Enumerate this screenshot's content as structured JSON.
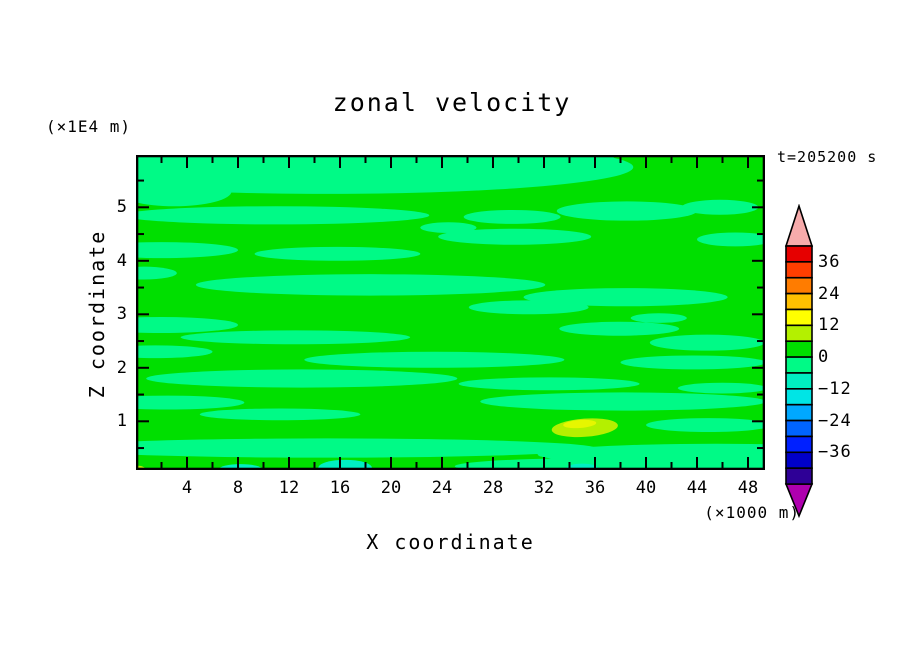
{
  "title": "zonal velocity",
  "timestamp": "t=205200 s",
  "axes": {
    "x": {
      "label": "X coordinate",
      "unit": "(×1000 m)",
      "major_ticks": [
        4,
        8,
        12,
        16,
        20,
        24,
        28,
        32,
        36,
        40,
        44,
        48
      ],
      "minor_tick_step": 2,
      "range": [
        0,
        49.4
      ]
    },
    "y": {
      "label": "Z coordinate",
      "unit": "(×1E4 m)",
      "major_ticks": [
        1,
        2,
        3,
        4,
        5
      ],
      "minor_tick_step": 0.5,
      "range": [
        0.08,
        5.98
      ]
    }
  },
  "colorbar": {
    "tick_labels": [
      "36",
      "24",
      "12",
      "0",
      "−12",
      "−24",
      "−36"
    ],
    "boxes": [
      {
        "value_range": [
          36,
          42
        ],
        "color": "#E60000"
      },
      {
        "value_range": [
          30,
          36
        ],
        "color": "#FF3E00"
      },
      {
        "value_range": [
          24,
          30
        ],
        "color": "#FF7C00"
      },
      {
        "value_range": [
          18,
          24
        ],
        "color": "#FFC000"
      },
      {
        "value_range": [
          12,
          18
        ],
        "color": "#FFFF00"
      },
      {
        "value_range": [
          6,
          12
        ],
        "color": "#B4F000"
      },
      {
        "value_range": [
          0,
          6
        ],
        "color": "#00DF00"
      },
      {
        "value_range": [
          -6,
          0
        ],
        "color": "#00FA86"
      },
      {
        "value_range": [
          -12,
          -6
        ],
        "color": "#00EFC2"
      },
      {
        "value_range": [
          -18,
          -12
        ],
        "color": "#00E5E5"
      },
      {
        "value_range": [
          -24,
          -18
        ],
        "color": "#00A8FF"
      },
      {
        "value_range": [
          -30,
          -24
        ],
        "color": "#0064FF"
      },
      {
        "value_range": [
          -36,
          -30
        ],
        "color": "#0020FF"
      },
      {
        "value_range": [
          -42,
          -36
        ],
        "color": "#0000C8"
      },
      {
        "value_range": [
          -48,
          -42
        ],
        "color": "#2E0096"
      }
    ],
    "over_arrow_color": "#F7ABAB",
    "under_arrow_color": "#AE00AE"
  },
  "chart_data": {
    "type": "heatmap",
    "title": "zonal velocity",
    "xlabel": "X coordinate (×1000 m)",
    "ylabel": "Z coordinate (×1E4 m)",
    "time_stamp": "t=205200 s",
    "x_range": [
      0,
      49.4
    ],
    "z_range": [
      0.08,
      5.98
    ],
    "contour_interval": 6,
    "value_labels_shown": [
      36,
      24,
      12,
      0,
      -12,
      -24,
      -36
    ],
    "field_summary": "Field is dominated by values in (0,6) shown green, with horizontally elongated streaks of (-6,0) shown spring-green; a small local maximum of 12-18 (yellow core in chartreuse ring) near x=35, z=0.9; small near-surface aquamarine minima (-12..-6) near x=8, 16 and 35; tiny chartreuse near-surface maxima (6..12) near x=0, 24.5 and 48.5.",
    "background_band": {
      "value_range": [
        0,
        6
      ],
      "color": "#00DF00"
    },
    "mint_band": {
      "value_range": [
        -6,
        0
      ],
      "color": "#00FA86",
      "ellipses": [
        [
          15,
          5.75,
          24,
          0.5
        ],
        [
          3,
          5.3,
          4.5,
          0.28
        ],
        [
          34.5,
          5.85,
          3.2,
          0.22
        ],
        [
          38.5,
          4.93,
          5.5,
          0.18
        ],
        [
          45.8,
          5.0,
          3.0,
          0.14
        ],
        [
          11,
          4.85,
          12,
          0.17
        ],
        [
          29.5,
          4.82,
          3.8,
          0.13
        ],
        [
          29.7,
          4.45,
          6.0,
          0.15
        ],
        [
          47,
          4.4,
          3.0,
          0.13
        ],
        [
          24.5,
          4.62,
          2.2,
          0.1
        ],
        [
          2,
          4.2,
          6,
          0.15
        ],
        [
          15.8,
          4.13,
          6.5,
          0.13
        ],
        [
          0.6,
          3.77,
          2.6,
          0.12
        ],
        [
          18.4,
          3.55,
          13.7,
          0.2
        ],
        [
          38.4,
          3.32,
          8,
          0.17
        ],
        [
          30.8,
          3.13,
          4.7,
          0.13
        ],
        [
          41,
          2.93,
          2.2,
          0.09
        ],
        [
          2,
          2.8,
          6,
          0.15
        ],
        [
          12.5,
          2.57,
          9,
          0.13
        ],
        [
          37.9,
          2.73,
          4.7,
          0.13
        ],
        [
          44.8,
          2.47,
          4.5,
          0.15
        ],
        [
          1.5,
          2.3,
          4.5,
          0.12
        ],
        [
          23.4,
          2.15,
          10.2,
          0.15
        ],
        [
          43.7,
          2.1,
          5.7,
          0.13
        ],
        [
          13,
          1.8,
          12.2,
          0.17
        ],
        [
          32.4,
          1.7,
          7.1,
          0.12
        ],
        [
          46,
          1.62,
          3.5,
          0.1
        ],
        [
          2.5,
          1.35,
          6,
          0.13
        ],
        [
          38.2,
          1.37,
          11.2,
          0.17
        ],
        [
          11.3,
          1.13,
          6.3,
          0.11
        ],
        [
          44.9,
          0.93,
          4.9,
          0.13
        ],
        [
          15,
          0.5,
          21,
          0.18
        ],
        [
          45.5,
          0.38,
          14,
          0.2
        ],
        [
          38,
          0.16,
          13,
          0.16
        ]
      ]
    },
    "aqua_band": {
      "value_range": [
        -12,
        -6
      ],
      "color": "#00EFC2",
      "ellipses": [
        [
          8.2,
          0.1,
          1.7,
          0.1
        ],
        [
          16.4,
          0.13,
          2.1,
          0.15
        ],
        [
          35,
          0.1,
          1.3,
          0.11
        ]
      ]
    },
    "chartreuse_band": {
      "value_range": [
        6,
        12
      ],
      "color": "#B4F000",
      "ellipses": [
        [
          0.2,
          0.07,
          0.6,
          0.1
        ],
        [
          24.4,
          0.05,
          1.0,
          0.08
        ],
        [
          48.6,
          0.05,
          1.4,
          0.08
        ],
        [
          35.2,
          0.88,
          2.6,
          0.17,
          -4
        ]
      ]
    },
    "yellow_core": {
      "value_range": [
        12,
        18
      ],
      "color": "#E6F600",
      "ellipses": [
        [
          34.8,
          0.95,
          1.3,
          0.075,
          -4
        ]
      ]
    }
  }
}
